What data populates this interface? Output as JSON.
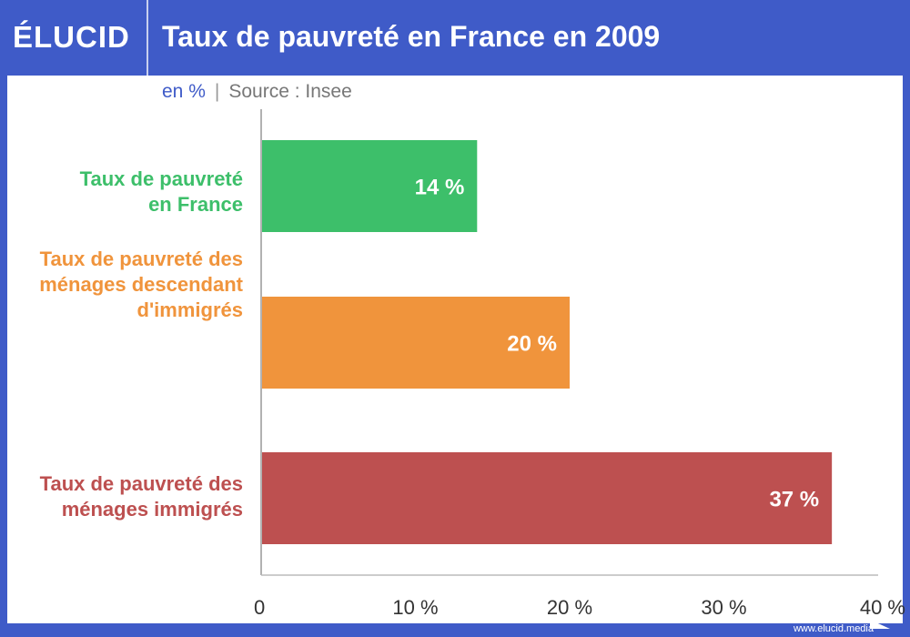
{
  "header": {
    "logo": "ÉLUCID",
    "title": "Taux de pauvreté en France en 2009"
  },
  "subtitle": {
    "unit": "en %",
    "separator": "|",
    "source": "Source : Insee"
  },
  "footer": {
    "url": "www.elucid.media"
  },
  "chart_data": {
    "type": "bar",
    "orientation": "horizontal",
    "title": "Taux de pauvreté en France en 2009",
    "categories": [
      "Taux de pauvreté\nen France",
      "Taux de pauvreté des\nménages descendant\nd'immigrés",
      "Taux de pauvreté des\nménages immigrés"
    ],
    "values": [
      14,
      20,
      37
    ],
    "data_labels": [
      "14 %",
      "20 %",
      "37 %"
    ],
    "colors": [
      "#3dbf6a",
      "#f0943c",
      "#bd5050"
    ],
    "xlim": [
      0,
      40
    ],
    "xticks": [
      "0",
      "10 %",
      "20 %",
      "30 %",
      "40 %"
    ],
    "xlabel": "",
    "ylabel": "",
    "grid": false
  }
}
